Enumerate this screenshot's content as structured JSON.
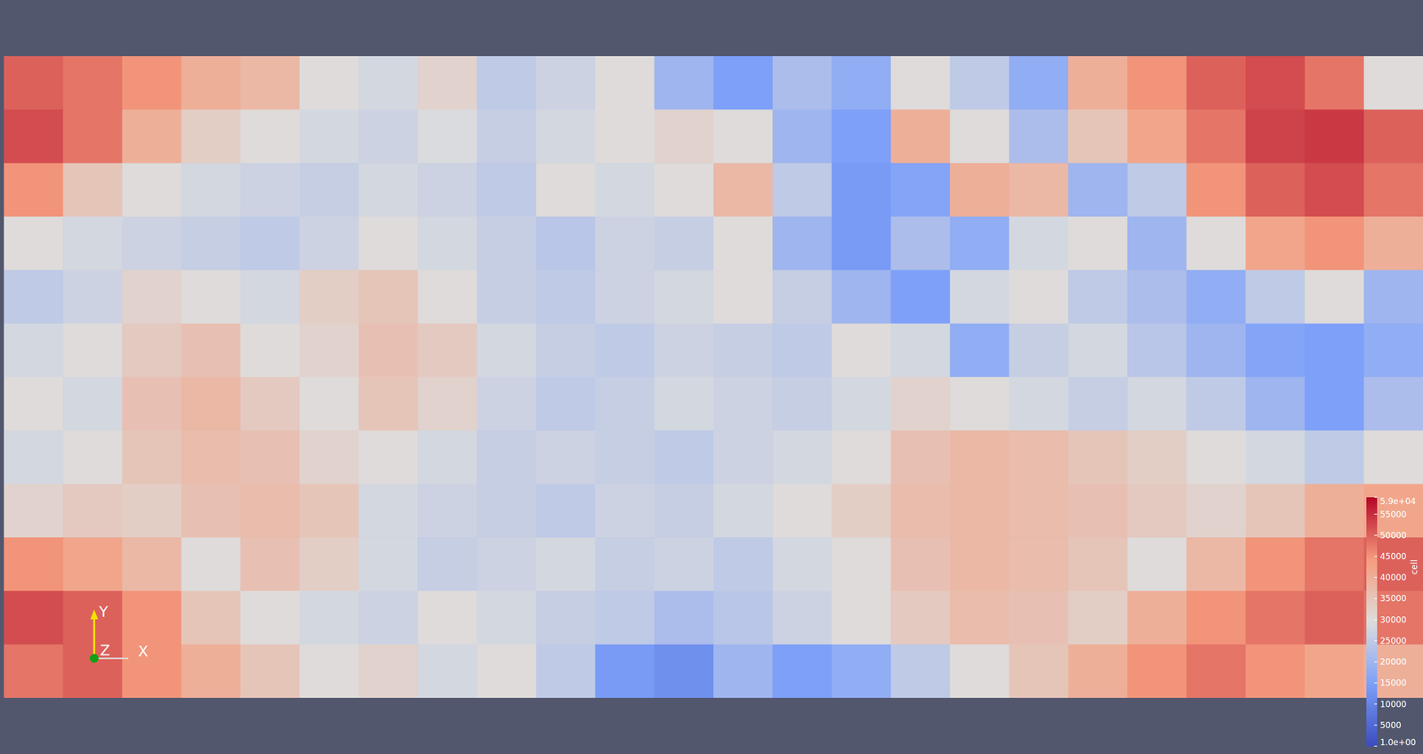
{
  "chart_data": {
    "type": "heatmap",
    "values": [
      [
        50000,
        48000,
        45000,
        40000,
        38000,
        30000,
        28000,
        32000,
        25000,
        27000,
        30000,
        20000,
        15000,
        22000,
        18000,
        30000,
        25000,
        18000,
        40000,
        45000,
        50000,
        52000,
        48000,
        30000
      ],
      [
        52000,
        48000,
        40000,
        33000,
        30000,
        28000,
        27000,
        29000,
        26000,
        28000,
        30000,
        32000,
        30000,
        20000,
        15000,
        40000,
        30000,
        22000,
        35000,
        42000,
        48000,
        53000,
        54000,
        50000
      ],
      [
        45000,
        35000,
        30000,
        28000,
        27000,
        26000,
        28000,
        27000,
        25000,
        30000,
        28000,
        30000,
        38000,
        25000,
        14000,
        16000,
        40000,
        38000,
        20000,
        25000,
        45000,
        50000,
        52000,
        48000
      ],
      [
        30000,
        28000,
        27000,
        26000,
        25000,
        27000,
        30000,
        28000,
        26000,
        24000,
        27000,
        26000,
        30000,
        20000,
        14000,
        22000,
        18000,
        28000,
        30000,
        20000,
        30000,
        42000,
        45000,
        40000
      ],
      [
        25000,
        27000,
        32000,
        30000,
        28000,
        33000,
        35000,
        30000,
        26000,
        25000,
        27000,
        28000,
        30000,
        26000,
        20000,
        15000,
        28000,
        30000,
        25000,
        22000,
        18000,
        25000,
        30000,
        20000
      ],
      [
        28000,
        30000,
        34000,
        36000,
        30000,
        32000,
        36000,
        34000,
        28000,
        26000,
        25000,
        27000,
        26000,
        25000,
        30000,
        28000,
        18000,
        26000,
        28000,
        24000,
        20000,
        16000,
        15000,
        18000
      ],
      [
        30000,
        28000,
        36000,
        38000,
        34000,
        30000,
        35000,
        32000,
        27000,
        25000,
        26000,
        28000,
        27000,
        26000,
        28000,
        32000,
        30000,
        28000,
        26000,
        28000,
        25000,
        20000,
        15000,
        22000
      ],
      [
        28000,
        30000,
        35000,
        37000,
        36000,
        32000,
        30000,
        28000,
        26000,
        27000,
        26000,
        25000,
        27000,
        28000,
        30000,
        36000,
        38000,
        37000,
        35000,
        33000,
        30000,
        28000,
        25000,
        30000
      ],
      [
        32000,
        34000,
        33000,
        36000,
        37000,
        35000,
        28000,
        27000,
        26000,
        25000,
        27000,
        26000,
        28000,
        30000,
        33000,
        37000,
        38000,
        37000,
        36000,
        34000,
        32000,
        35000,
        40000,
        42000
      ],
      [
        45000,
        42000,
        38000,
        30000,
        36000,
        33000,
        28000,
        26000,
        27000,
        28000,
        26000,
        27000,
        25000,
        28000,
        30000,
        36000,
        38000,
        37000,
        35000,
        30000,
        38000,
        45000,
        48000,
        50000
      ],
      [
        52000,
        50000,
        45000,
        35000,
        30000,
        28000,
        27000,
        30000,
        28000,
        26000,
        25000,
        22000,
        24000,
        27000,
        30000,
        34000,
        37000,
        36000,
        33000,
        40000,
        45000,
        48000,
        50000,
        48000
      ],
      [
        48000,
        50000,
        45000,
        40000,
        35000,
        30000,
        32000,
        28000,
        30000,
        25000,
        14000,
        12000,
        20000,
        15000,
        18000,
        25000,
        30000,
        35000,
        40000,
        45000,
        48000,
        45000,
        42000,
        40000
      ]
    ],
    "colorbar_title": "cell",
    "colorbar_range": [
      1,
      59000
    ],
    "colorbar_ticks": [
      {
        "value": 59000,
        "label": "5.9e+04"
      },
      55000,
      50000,
      45000,
      40000,
      35000,
      30000,
      25000,
      20000,
      15000,
      10000,
      5000,
      {
        "value": 1,
        "label": "1.0e+00"
      }
    ],
    "axes_triad": [
      "Y",
      "Z",
      "X"
    ]
  }
}
